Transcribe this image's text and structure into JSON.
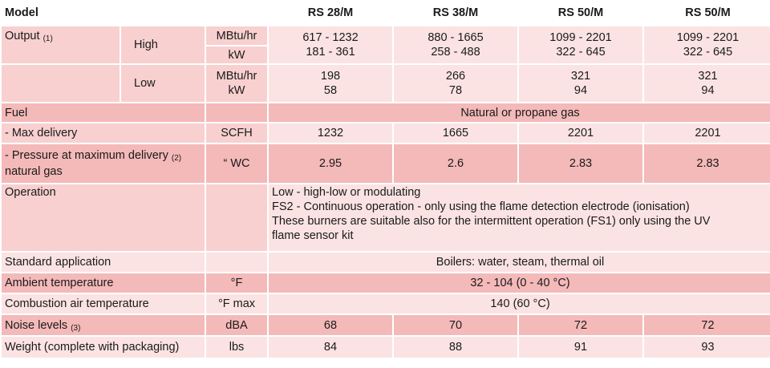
{
  "header": {
    "model_label": "Model",
    "models": [
      "RS 28/M",
      "RS 38/M",
      "RS 50/M",
      "RS 50/M"
    ]
  },
  "output": {
    "label": "Output",
    "note": "(1)",
    "high": {
      "label": "High",
      "unit_mbtu": "MBtu/hr",
      "unit_kw": "kW",
      "mbtu": [
        "617 - 1232",
        "880 - 1665",
        "1099 - 2201",
        "1099 - 2201"
      ],
      "kw": [
        "181 - 361",
        "258 - 488",
        "322 - 645",
        "322 - 645"
      ]
    },
    "low": {
      "label": "Low",
      "unit_mbtu": "MBtu/hr",
      "unit_kw": "kW",
      "mbtu": [
        "198",
        "266",
        "321",
        "321"
      ],
      "kw": [
        "58",
        "78",
        "94",
        "94"
      ]
    }
  },
  "fuel": {
    "label": "Fuel",
    "value": "Natural or propane gas"
  },
  "max_delivery": {
    "label": "- Max delivery",
    "unit": "SCFH",
    "values": [
      "1232",
      "1665",
      "2201",
      "2201"
    ]
  },
  "pressure": {
    "label_line1": "- Pressure at maximum delivery",
    "note": "(2)",
    "label_line2": "natural gas",
    "unit": "“ WC",
    "values": [
      "2.95",
      "2.6",
      "2.83",
      "2.83"
    ]
  },
  "operation": {
    "label": "Operation",
    "lines": [
      "Low - high-low or modulating",
      "FS2 - Continuous operation - only using the flame detection electrode (ionisation)",
      "These burners are suitable also for the intermittent operation (FS1) only using the UV",
      "flame sensor kit"
    ]
  },
  "standard_application": {
    "label": "Standard application",
    "value": "Boilers: water, steam, thermal oil"
  },
  "ambient_temperature": {
    "label": "Ambient temperature",
    "unit": "°F",
    "value": "32 - 104 (0 - 40 °C)"
  },
  "combustion_air": {
    "label": "Combustion air temperature",
    "unit": "°F max",
    "value": "140 (60 °C)"
  },
  "noise": {
    "label": "Noise levels",
    "note": "(3)",
    "unit": "dBA",
    "values": [
      "68",
      "70",
      "72",
      "72"
    ]
  },
  "weight": {
    "label": "Weight (complete with packaging)",
    "unit": "lbs",
    "values": [
      "84",
      "88",
      "91",
      "93"
    ]
  }
}
